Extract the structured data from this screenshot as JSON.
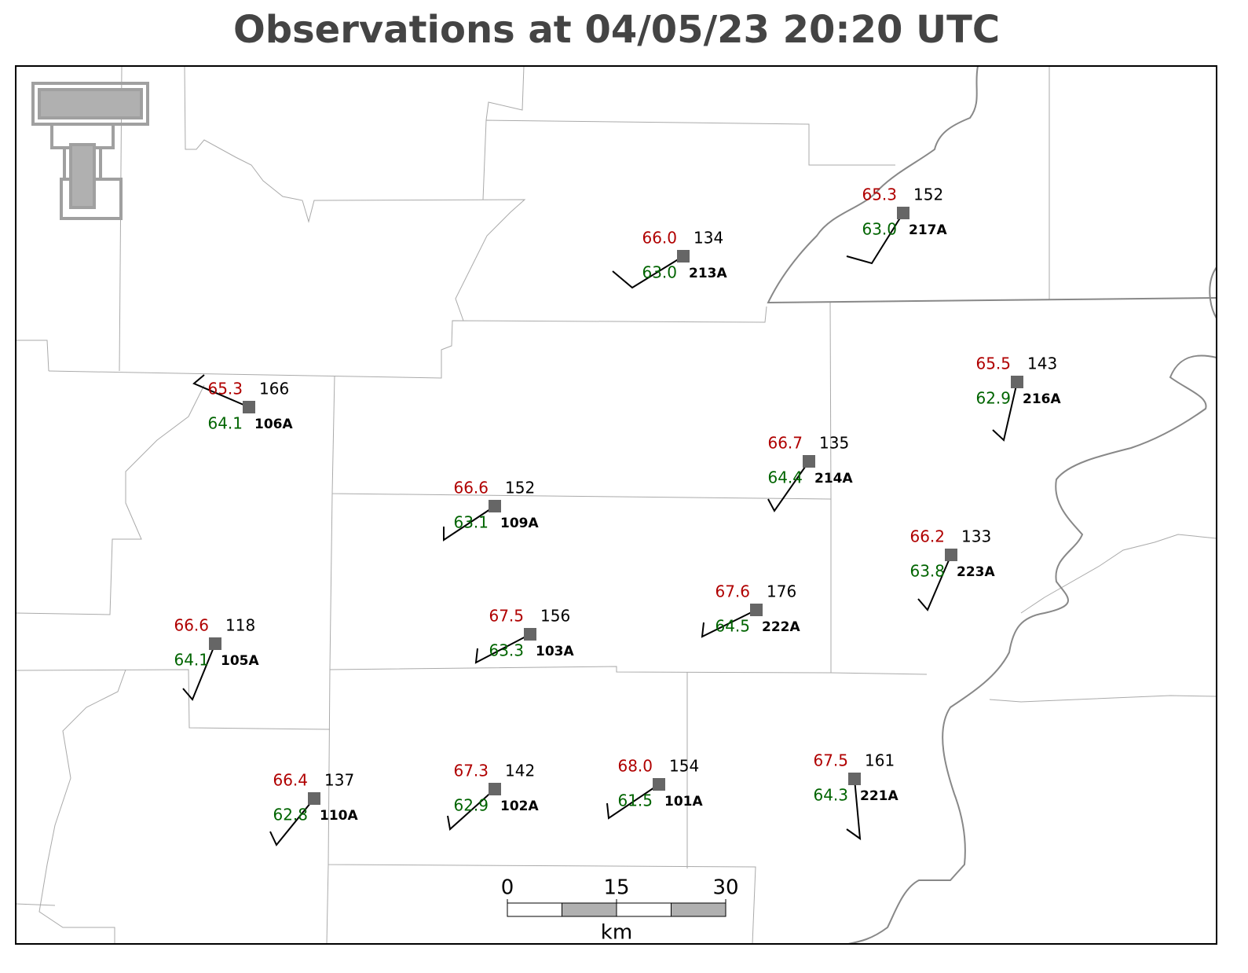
{
  "title": "Observations at 04/05/23 20:20 UTC",
  "stations": [
    {
      "id": "213A",
      "temperature": "66.0",
      "dewpoint": "63.0",
      "pressure": 134
    },
    {
      "id": "217A",
      "temperature": "65.3",
      "dewpoint": "63.0",
      "pressure": 152
    },
    {
      "id": "106A",
      "temperature": "65.3",
      "dewpoint": "64.1",
      "pressure": 166
    },
    {
      "id": "216A",
      "temperature": "65.5",
      "dewpoint": "62.9",
      "pressure": 143
    },
    {
      "id": "214A",
      "temperature": "66.7",
      "dewpoint": "64.4",
      "pressure": 135
    },
    {
      "id": "109A",
      "temperature": "66.6",
      "dewpoint": "63.1",
      "pressure": 152
    },
    {
      "id": "223A",
      "temperature": "66.2",
      "dewpoint": "63.8",
      "pressure": 133
    },
    {
      "id": "222A",
      "temperature": "67.6",
      "dewpoint": "64.5",
      "pressure": 176
    },
    {
      "id": "103A",
      "temperature": "67.5",
      "dewpoint": "63.3",
      "pressure": 156
    },
    {
      "id": "105A",
      "temperature": "66.6",
      "dewpoint": "64.1",
      "pressure": 118
    },
    {
      "id": "110A",
      "temperature": "66.4",
      "dewpoint": "62.8",
      "pressure": 137
    },
    {
      "id": "102A",
      "temperature": "67.3",
      "dewpoint": "62.9",
      "pressure": 142
    },
    {
      "id": "101A",
      "temperature": "68.0",
      "dewpoint": "61.5",
      "pressure": 154
    },
    {
      "id": "221A",
      "temperature": "67.5",
      "dewpoint": "64.3",
      "pressure": 161
    }
  ],
  "scale_bar": {
    "ticks": [
      0,
      15,
      30
    ],
    "unit": "km"
  }
}
